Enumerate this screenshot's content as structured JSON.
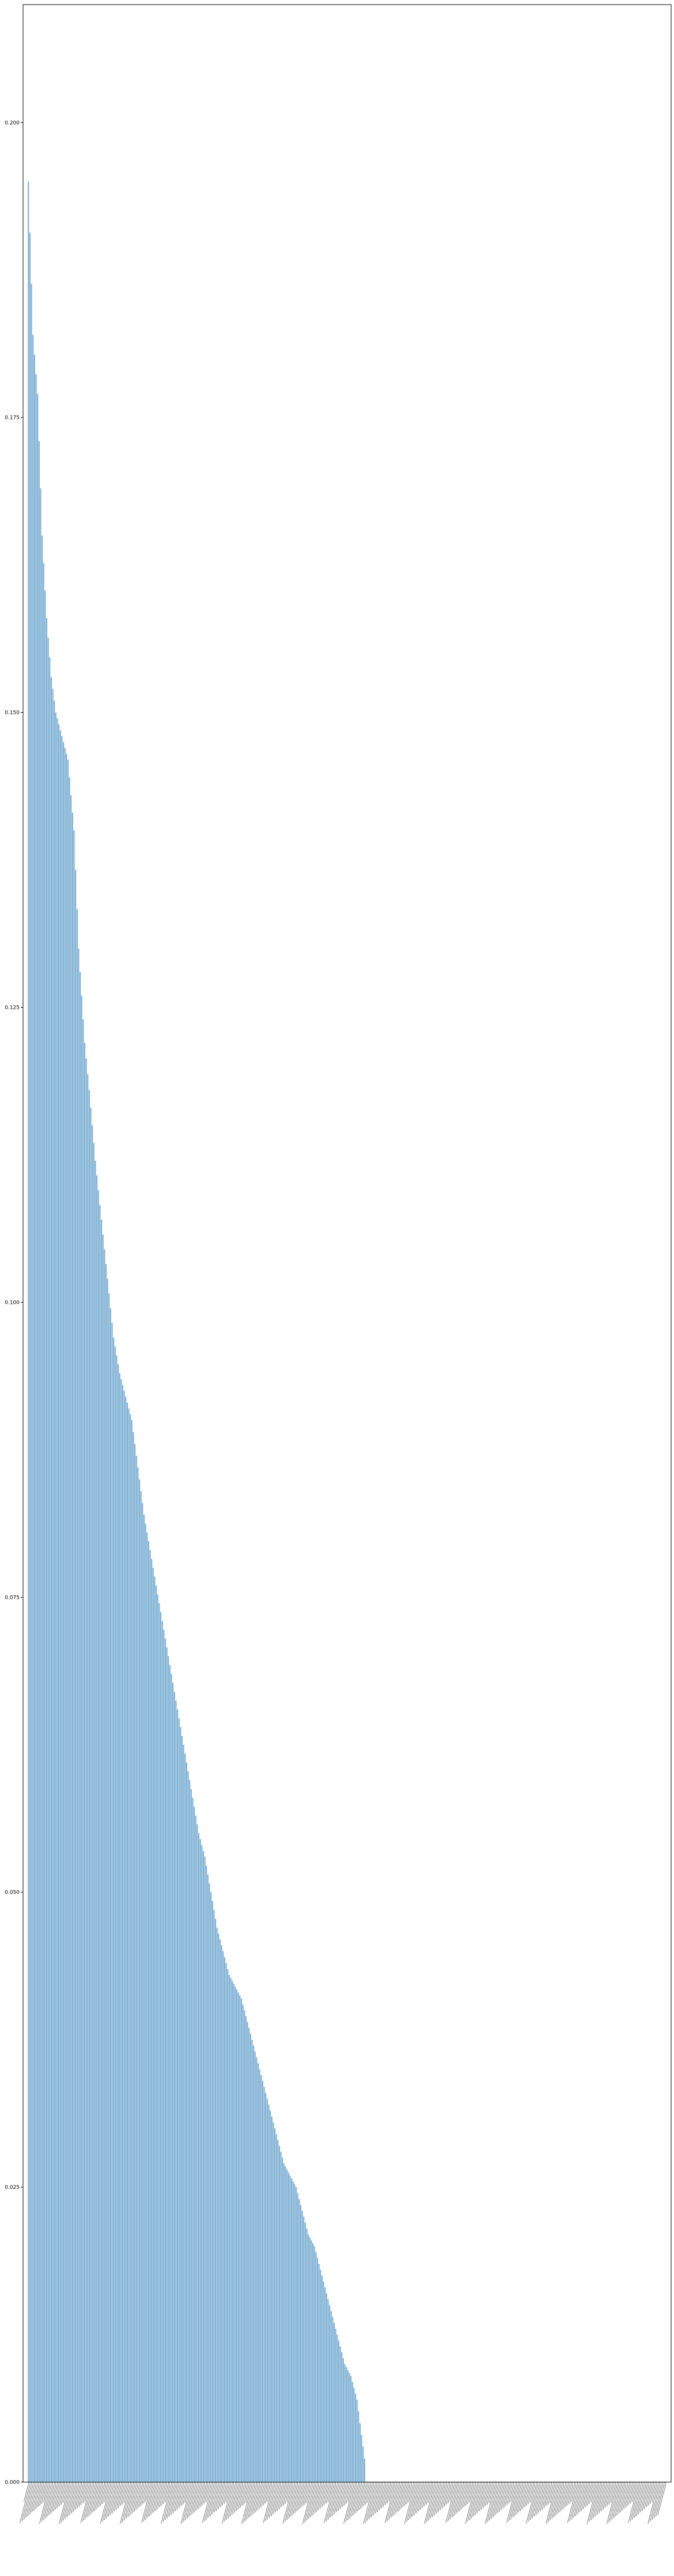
{
  "chart_data": {
    "type": "bar",
    "title": "",
    "xlabel": "",
    "ylabel": "",
    "ylim": [
      0,
      0.21
    ],
    "yticks": [
      0.0,
      0.025,
      0.05,
      0.075,
      0.1,
      0.125,
      0.15,
      0.175,
      0.2
    ],
    "ytick_labels": [
      "0.000",
      "0.025",
      "0.050",
      "0.075",
      "0.100",
      "0.125",
      "0.150",
      "0.175",
      "0.200"
    ],
    "grid": false,
    "legend": null,
    "bar_color": "#1f77b4",
    "bar_alpha": 0.6,
    "category_count": 420,
    "nonzero_profile": [
      [
        0,
        0.195
      ],
      [
        3,
        0.182
      ],
      [
        6,
        0.177
      ],
      [
        9,
        0.165
      ],
      [
        12,
        0.158
      ],
      [
        15,
        0.153
      ],
      [
        18,
        0.15
      ],
      [
        22,
        0.148
      ],
      [
        26,
        0.146
      ],
      [
        30,
        0.14
      ],
      [
        33,
        0.13
      ],
      [
        37,
        0.122
      ],
      [
        40,
        0.118
      ],
      [
        44,
        0.112
      ],
      [
        48,
        0.107
      ],
      [
        52,
        0.102
      ],
      [
        56,
        0.097
      ],
      [
        60,
        0.094
      ],
      [
        64,
        0.092
      ],
      [
        68,
        0.09
      ],
      [
        72,
        0.086
      ],
      [
        76,
        0.082
      ],
      [
        80,
        0.079
      ],
      [
        84,
        0.076
      ],
      [
        88,
        0.073
      ],
      [
        92,
        0.07
      ],
      [
        96,
        0.067
      ],
      [
        100,
        0.064
      ],
      [
        104,
        0.061
      ],
      [
        108,
        0.058
      ],
      [
        112,
        0.055
      ],
      [
        116,
        0.053
      ],
      [
        120,
        0.05
      ],
      [
        124,
        0.047
      ],
      [
        128,
        0.045
      ],
      [
        132,
        0.043
      ],
      [
        136,
        0.042
      ],
      [
        140,
        0.041
      ],
      [
        144,
        0.039
      ],
      [
        148,
        0.037
      ],
      [
        152,
        0.035
      ],
      [
        156,
        0.033
      ],
      [
        160,
        0.031
      ],
      [
        164,
        0.029
      ],
      [
        168,
        0.027
      ],
      [
        172,
        0.026
      ],
      [
        176,
        0.025
      ],
      [
        180,
        0.023
      ],
      [
        184,
        0.021
      ],
      [
        188,
        0.02
      ],
      [
        192,
        0.018
      ],
      [
        196,
        0.016
      ],
      [
        200,
        0.014
      ],
      [
        204,
        0.012
      ],
      [
        208,
        0.01
      ],
      [
        212,
        0.009
      ],
      [
        216,
        0.007
      ],
      [
        219,
        0.004
      ],
      [
        221,
        0.002
      ],
      [
        222,
        0.0
      ]
    ]
  }
}
